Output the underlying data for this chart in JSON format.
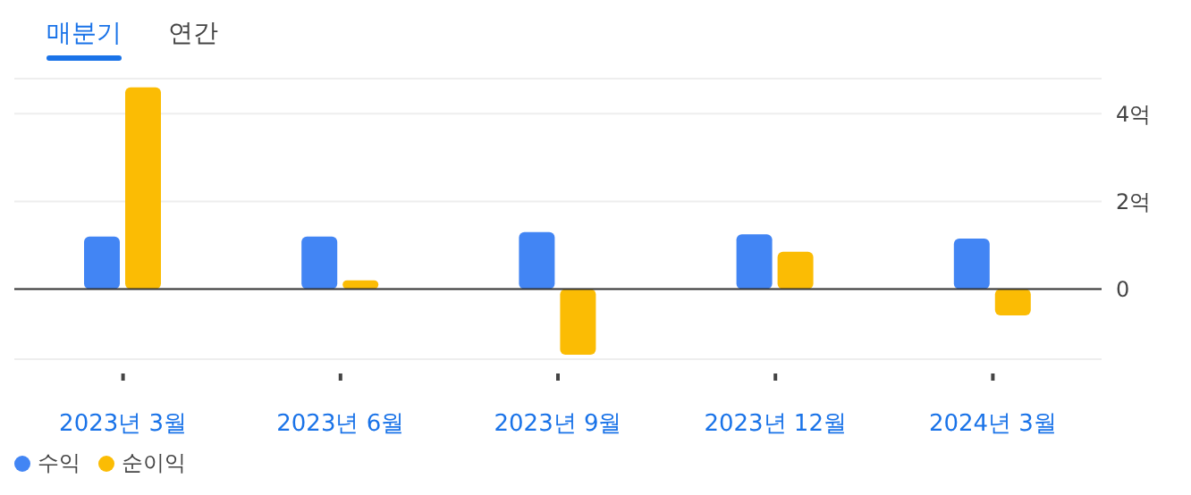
{
  "chart_data": {
    "type": "bar",
    "annotations": [
      "매분기",
      "연간"
    ],
    "categories": [
      "2023년 3월",
      "2023년 6월",
      "2023년 9월",
      "2023년 12월",
      "2024년 3월"
    ],
    "series": [
      {
        "name": "수익",
        "color": "#4285f4",
        "values": [
          1.2,
          1.2,
          1.3,
          1.25,
          1.15
        ]
      },
      {
        "name": "순이익",
        "color": "#fbbc04",
        "values": [
          4.6,
          0.2,
          -1.5,
          0.85,
          -0.6
        ]
      }
    ],
    "ylim": [
      -1.6,
      4.8
    ],
    "yticks": [
      0,
      {
        "value": 2,
        "label": "2억"
      },
      {
        "value": 4,
        "label": "4억"
      }
    ],
    "grid": "y",
    "legend": "bottom left"
  }
}
